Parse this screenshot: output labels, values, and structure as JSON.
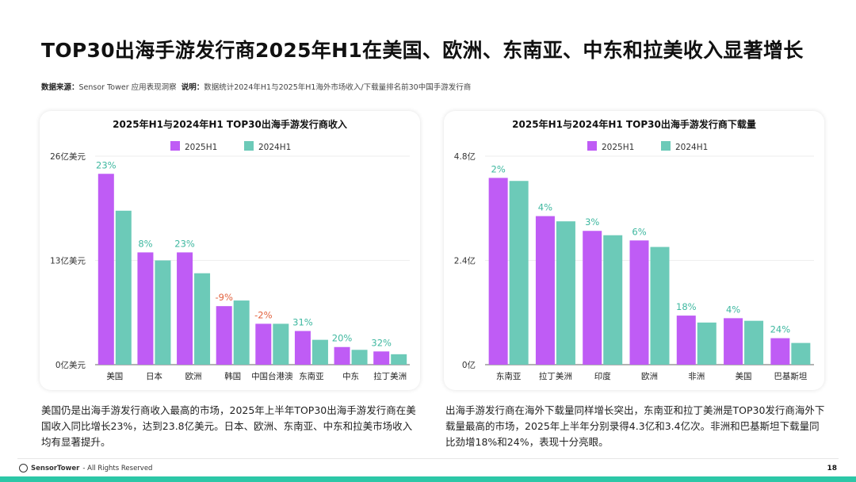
{
  "header": {
    "title": "TOP30出海手游发行商2025年H1在美国、欧洲、东南亚、中东和拉美收入显著增长",
    "source_label": "数据来源：",
    "source_value": "Sensor Tower 应用表现洞察",
    "note_label": "说明：",
    "note_value": "数据统计2024年H1与2025年H1海外市场收入/下载量排名前30中国手游发行商"
  },
  "colors": {
    "s2025": "#bf5cf5",
    "s2024": "#6ccab8",
    "positive": "#3fb8a0",
    "negative": "#e2623e"
  },
  "chart_data": [
    {
      "type": "bar",
      "title": "2025年H1与2024年H1 TOP30出海手游发行商收入",
      "categories": [
        "美国",
        "日本",
        "欧洲",
        "韩国",
        "中国台港澳",
        "东南亚",
        "中东",
        "拉丁美洲"
      ],
      "series": [
        {
          "name": "2025H1",
          "values": [
            23.8,
            14.0,
            14.0,
            7.3,
            5.1,
            4.2,
            2.2,
            1.65
          ]
        },
        {
          "name": "2024H1",
          "values": [
            19.2,
            13.0,
            11.4,
            8.0,
            5.1,
            3.1,
            1.85,
            1.3
          ]
        }
      ],
      "growth_labels": [
        "23%",
        "8%",
        "23%",
        "-9%",
        "-2%",
        "31%",
        "20%",
        "32%"
      ],
      "yticks": [
        0,
        13,
        26
      ],
      "ytick_labels": [
        "0亿美元",
        "13亿美元",
        "26亿美元"
      ],
      "ylim": [
        0,
        26
      ],
      "grid": true,
      "legend": "top-center"
    },
    {
      "type": "bar",
      "title": "2025年H1与2024年H1 TOP30出海手游发行商下载量",
      "categories": [
        "东南亚",
        "拉丁美洲",
        "印度",
        "欧洲",
        "非洲",
        "美国",
        "巴基斯坦"
      ],
      "series": [
        {
          "name": "2025H1",
          "values": [
            4.3,
            3.42,
            3.08,
            2.86,
            1.13,
            1.07,
            0.61
          ]
        },
        {
          "name": "2024H1",
          "values": [
            4.23,
            3.3,
            2.98,
            2.71,
            0.97,
            1.01,
            0.5
          ]
        }
      ],
      "growth_labels": [
        "2%",
        "4%",
        "3%",
        "6%",
        "18%",
        "4%",
        "24%"
      ],
      "yticks": [
        0,
        2.4,
        4.8
      ],
      "ytick_labels": [
        "0亿",
        "2.4亿",
        "4.8亿"
      ],
      "ylim": [
        0,
        4.8
      ],
      "grid": true,
      "legend": "top-center"
    }
  ],
  "descriptions": [
    "美国仍是出海手游发行商收入最高的市场，2025年上半年TOP30出海手游发行商在美国收入同比增长23%，达到23.8亿美元。日本、欧洲、东南亚、中东和拉美市场收入均有显著提升。",
    "出海手游发行商在海外下载量同样增长突出，东南亚和拉丁美洲是TOP30发行商海外下载量最高的市场，2025年上半年分别录得4.3亿和3.4亿次。非洲和巴基斯坦下载量同比劲增18%和24%，表现十分亮眼。"
  ],
  "footer": {
    "brand": "SensorTower",
    "rights": " - All Rights Reserved",
    "page": "18"
  }
}
